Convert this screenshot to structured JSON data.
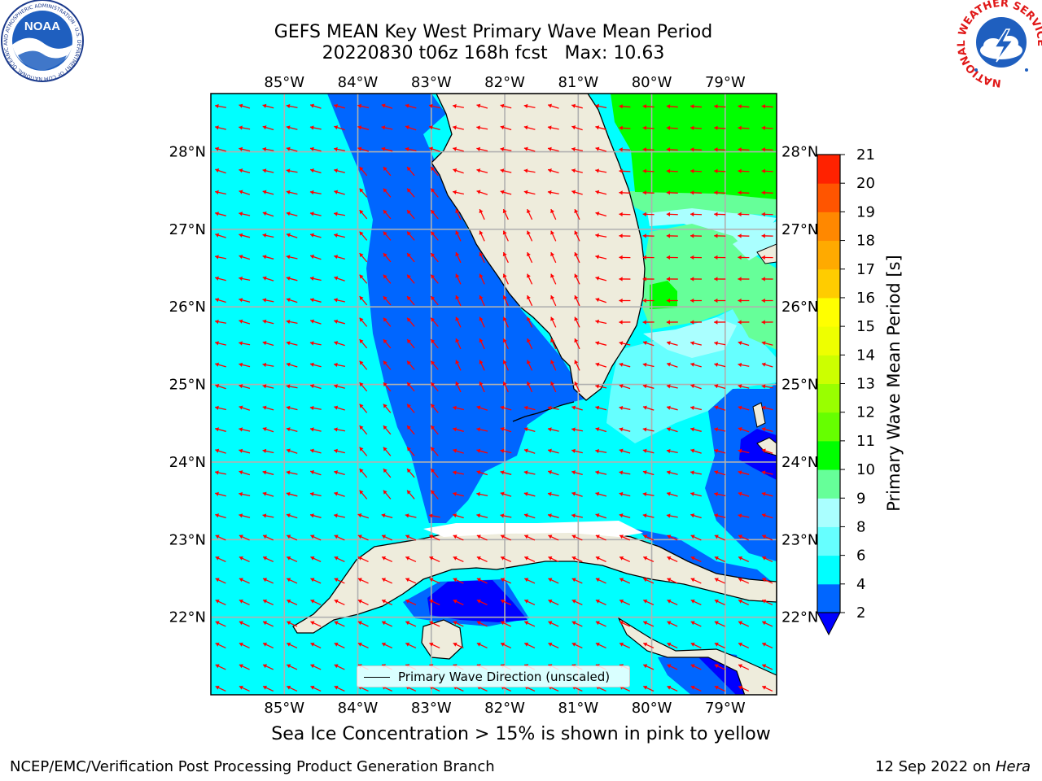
{
  "title": {
    "line1": "GEFS MEAN Key West Primary Wave Mean Period",
    "line2": "20220830 t06z 168h fcst   Max: 10.63"
  },
  "map": {
    "lon_ticks": [
      "85°W",
      "84°W",
      "83°W",
      "82°W",
      "81°W",
      "80°W",
      "79°W"
    ],
    "lat_ticks": [
      "28°N",
      "27°N",
      "26°N",
      "25°N",
      "24°N",
      "23°N",
      "22°N"
    ],
    "lon_range": [
      -86.0,
      -78.3
    ],
    "lat_range": [
      21.0,
      28.75
    ],
    "land_color": "#eeecdc",
    "grid_color": "#b0b0b0",
    "arrow_color": "#ff0000",
    "legend_label": "Primary Wave Direction (unscaled)"
  },
  "colorbar": {
    "label": "Primary Wave Mean Period [s]",
    "ticks": [
      "2",
      "4",
      "6",
      "8",
      "9",
      "10",
      "11",
      "12",
      "13",
      "14",
      "15",
      "16",
      "17",
      "18",
      "19",
      "20",
      "21"
    ],
    "levels": [
      2,
      4,
      6,
      8,
      9,
      10,
      11,
      12,
      13,
      14,
      15,
      16,
      17,
      18,
      19,
      20,
      21
    ],
    "colors": [
      "#0066ff",
      "#00ffff",
      "#66ffff",
      "#aaffff",
      "#66ff99",
      "#00ff00",
      "#66ff00",
      "#99ff00",
      "#ccff00",
      "#eeff00",
      "#ffff00",
      "#ffcc00",
      "#ffaa00",
      "#ff8800",
      "#ff5500",
      "#ff2200"
    ],
    "under_color": "#0000ff"
  },
  "note": "Sea Ice Concentration > 15% is shown in pink to yellow",
  "footer": {
    "left": "NCEP/EMC/Verification Post Processing Product Generation Branch",
    "date": "12 Sep 2022 on ",
    "machine": "Hera"
  },
  "logos": {
    "noaa_text": "NOAA",
    "noaa_ring": "NATIONAL OCEANIC AND ATMOSPHERIC ADMINISTRATION · U.S. DEPARTMENT OF COMMERCE",
    "nws_ring": "NATIONAL WEATHER SERVICE"
  }
}
